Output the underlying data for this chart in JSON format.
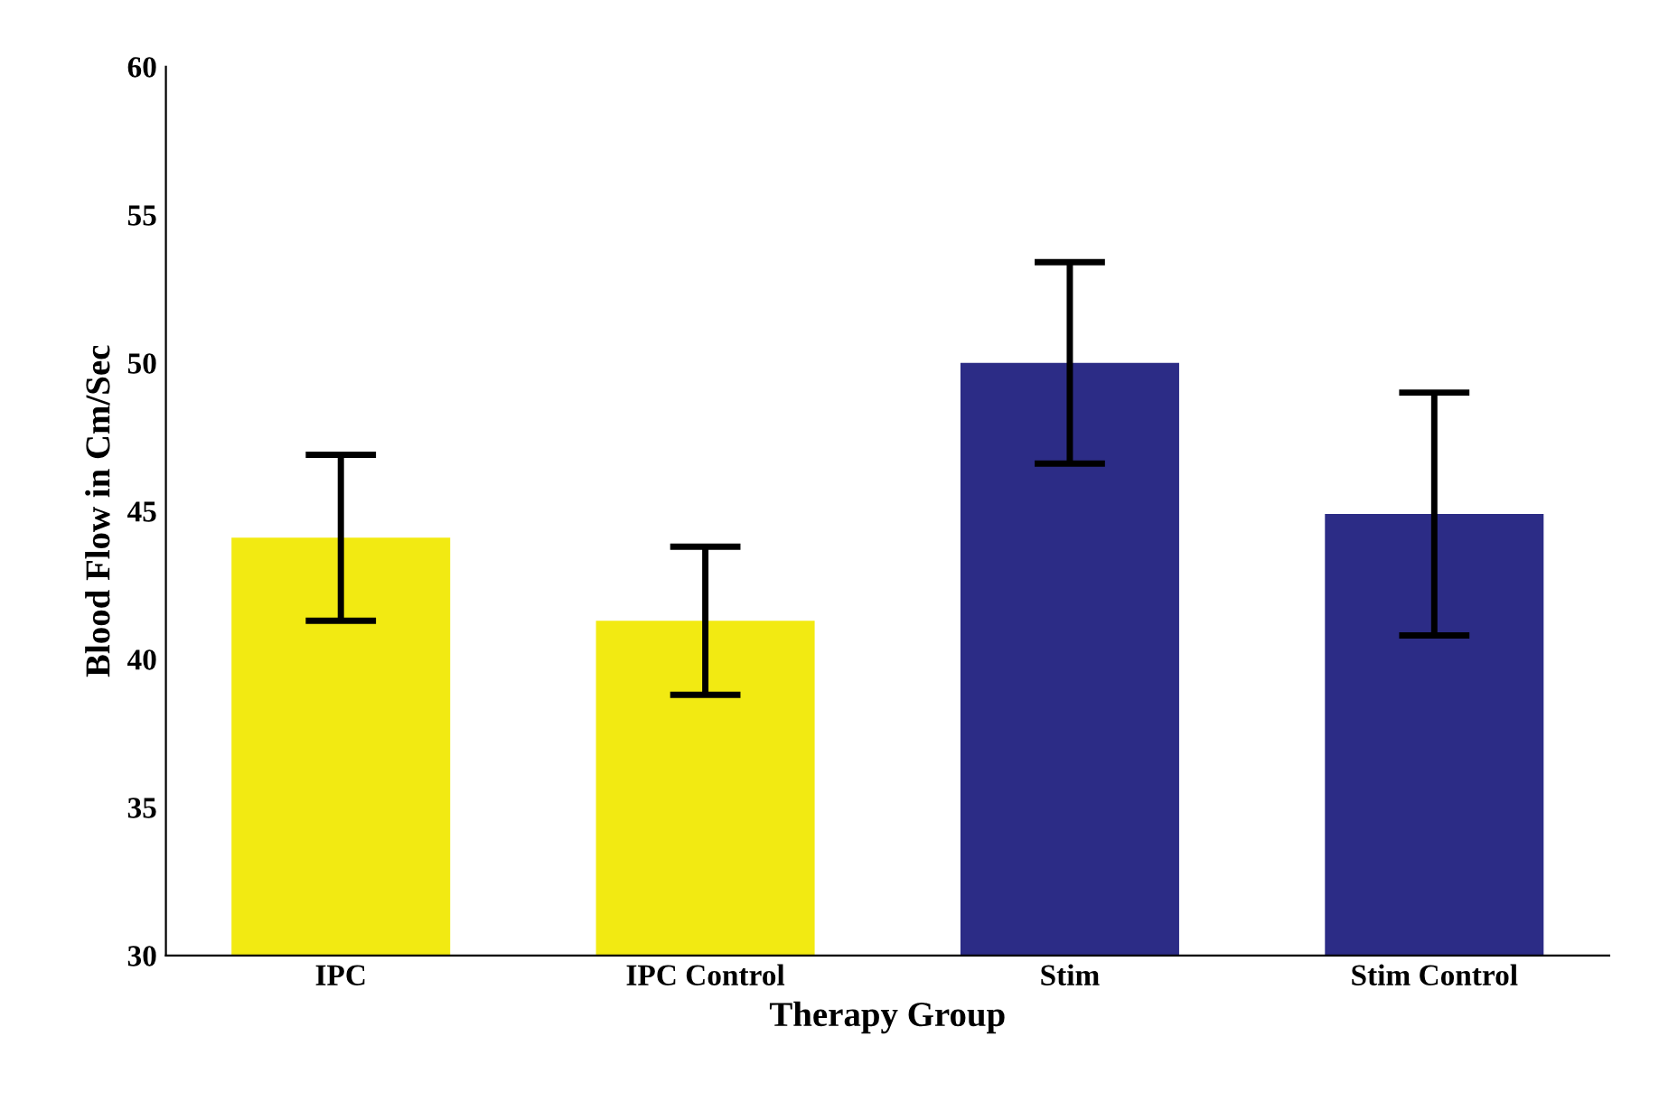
{
  "chart_data": {
    "type": "bar",
    "xlabel": "Therapy Group",
    "ylabel": "Blood Flow in Cm/Sec",
    "categories": [
      "IPC",
      "IPC Control",
      "Stim",
      "Stim Control"
    ],
    "values": [
      44.1,
      41.3,
      50.0,
      44.9
    ],
    "errors": [
      2.8,
      2.5,
      3.4,
      4.1
    ],
    "colors": [
      "#f2ea12",
      "#f2ea12",
      "#2c2c86",
      "#2c2c86"
    ],
    "ylim": [
      30,
      60
    ],
    "yticks": [
      30,
      35,
      40,
      45,
      50,
      55,
      60
    ],
    "grid": false,
    "legend": false
  }
}
